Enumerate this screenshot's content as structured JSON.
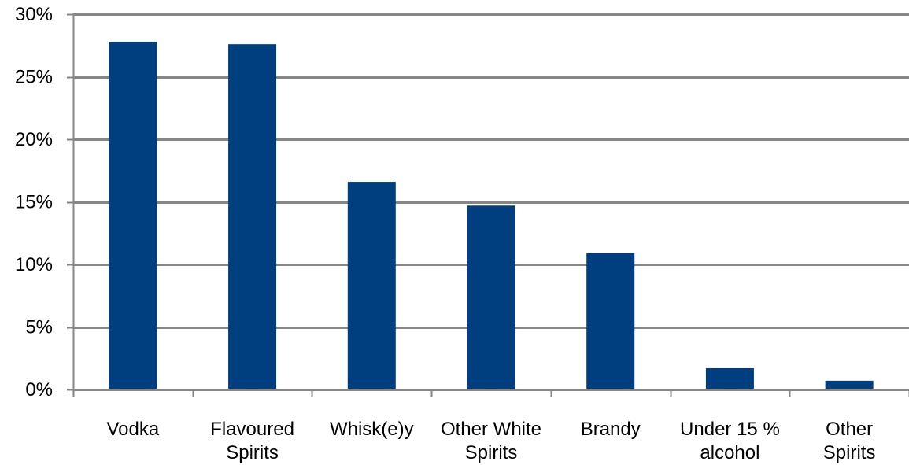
{
  "chart_data": {
    "type": "bar",
    "title": "",
    "xlabel": "",
    "ylabel": "",
    "categories": [
      [
        "Vodka"
      ],
      [
        "Flavoured",
        "Spirits"
      ],
      [
        "Whisk(e)y"
      ],
      [
        "Other White",
        "Spirits"
      ],
      [
        "Brandy"
      ],
      [
        "Under 15 %",
        "alcohol"
      ],
      [
        "Other",
        "Spirits"
      ]
    ],
    "values": [
      27.8,
      27.6,
      16.6,
      14.7,
      10.9,
      1.7,
      0.7
    ],
    "ylim": [
      0,
      30
    ],
    "yticks": [
      0,
      5,
      10,
      15,
      20,
      25,
      30
    ],
    "ytick_labels": [
      "0%",
      "5%",
      "10%",
      "15%",
      "20%",
      "25%",
      "30%"
    ],
    "grid": true,
    "legend": "none",
    "colors": {
      "bar": "#003F7F",
      "grid": "#868686",
      "axis": "#868686"
    }
  }
}
